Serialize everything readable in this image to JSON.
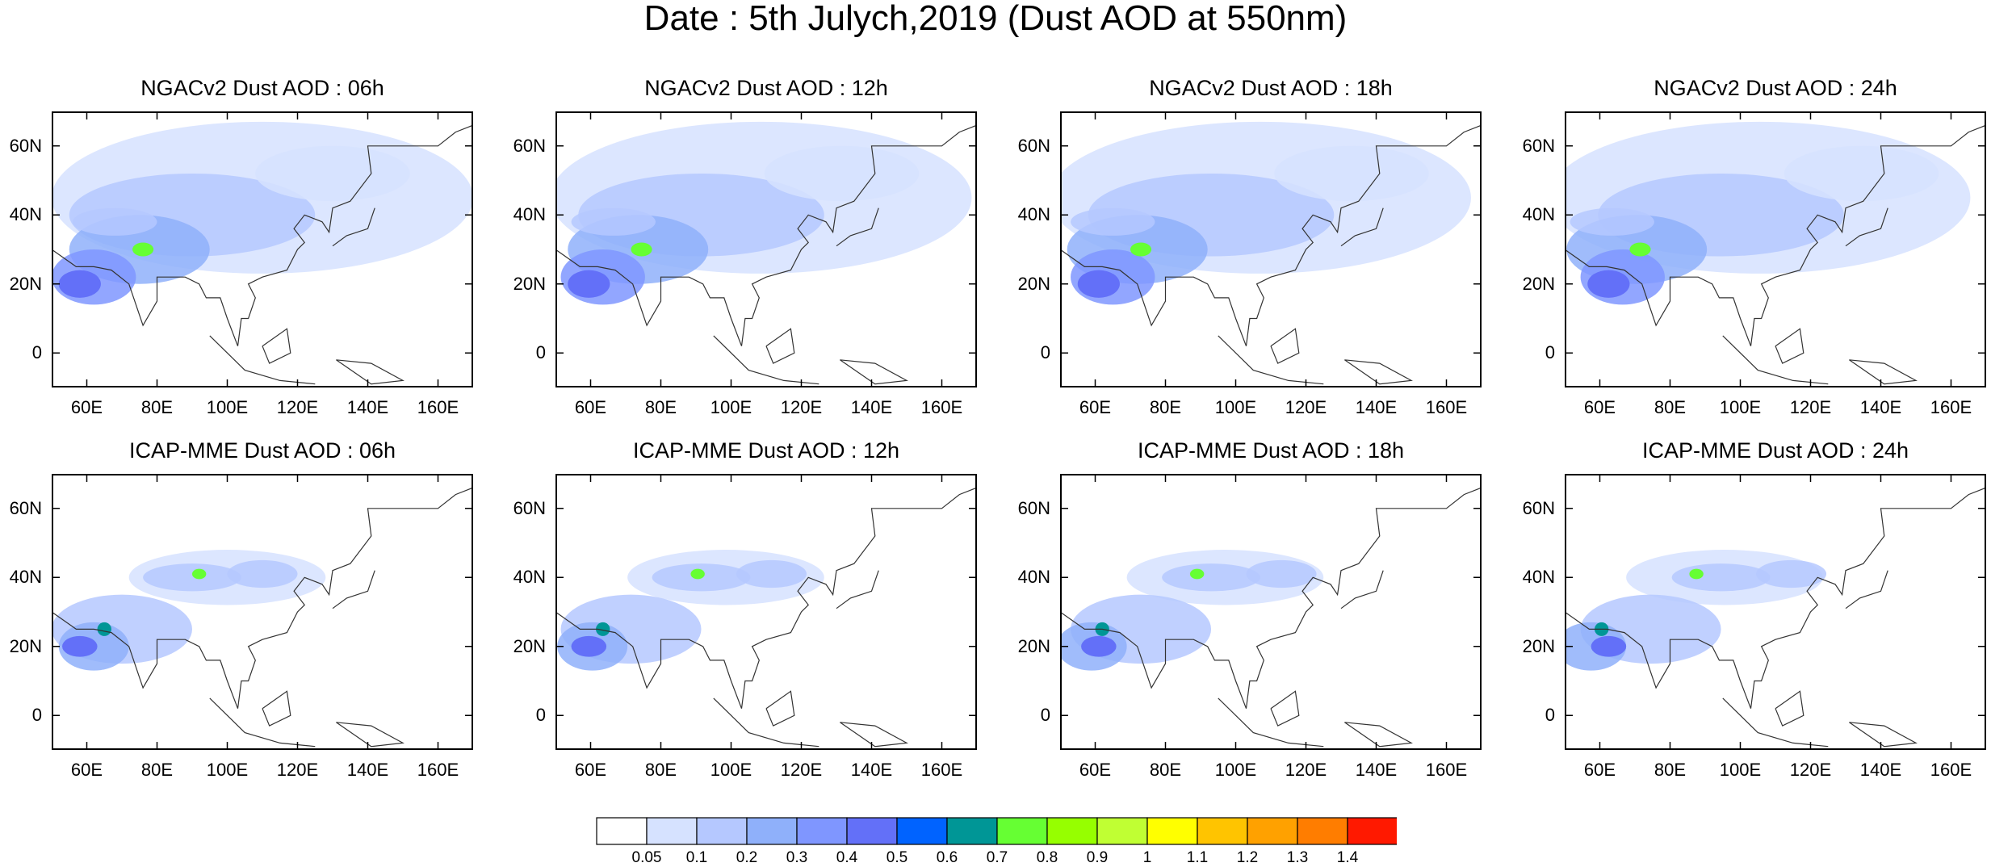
{
  "title": "Date : 5th Julych,2019 (Dust AOD at 550nm)",
  "panels": [
    {
      "title": "NGACv2 Dust AOD : 06h",
      "model": "NGACv2",
      "hour": "06h"
    },
    {
      "title": "NGACv2 Dust AOD : 12h",
      "model": "NGACv2",
      "hour": "12h"
    },
    {
      "title": "NGACv2 Dust AOD : 18h",
      "model": "NGACv2",
      "hour": "18h"
    },
    {
      "title": "NGACv2 Dust AOD : 24h",
      "model": "NGACv2",
      "hour": "24h"
    },
    {
      "title": "ICAP-MME Dust AOD : 06h",
      "model": "ICAP-MME",
      "hour": "06h"
    },
    {
      "title": "ICAP-MME Dust AOD : 12h",
      "model": "ICAP-MME",
      "hour": "12h"
    },
    {
      "title": "ICAP-MME Dust AOD : 18h",
      "model": "ICAP-MME",
      "hour": "18h"
    },
    {
      "title": "ICAP-MME Dust AOD : 24h",
      "model": "ICAP-MME",
      "hour": "24h"
    }
  ],
  "map": {
    "lon_range": [
      50,
      170
    ],
    "lat_range": [
      -10,
      70
    ],
    "lat_ticks": [
      {
        "value": 60,
        "label": "60N"
      },
      {
        "value": 40,
        "label": "40N"
      },
      {
        "value": 20,
        "label": "20N"
      },
      {
        "value": 0,
        "label": "0"
      }
    ],
    "lon_ticks": [
      {
        "value": 60,
        "label": "60E"
      },
      {
        "value": 80,
        "label": "80E"
      },
      {
        "value": 100,
        "label": "100E"
      },
      {
        "value": 120,
        "label": "120E"
      },
      {
        "value": 140,
        "label": "140E"
      },
      {
        "value": 160,
        "label": "160E"
      }
    ]
  },
  "colorbar": {
    "colors": [
      "#ffffff",
      "#d6e2ff",
      "#b5c8ff",
      "#8fb0fa",
      "#7f96ff",
      "#6370f8",
      "#0063ff",
      "#009696",
      "#66ff33",
      "#96ff00",
      "#c0ff33",
      "#ffff00",
      "#ffc400",
      "#ffa100",
      "#ff7d00",
      "#ff1900"
    ],
    "labels": [
      "0.05",
      "0.1",
      "0.2",
      "0.3",
      "0.4",
      "0.5",
      "0.6",
      "0.7",
      "0.8",
      "0.9",
      "1",
      "1.1",
      "1.2",
      "1.3",
      "1.4"
    ]
  }
}
